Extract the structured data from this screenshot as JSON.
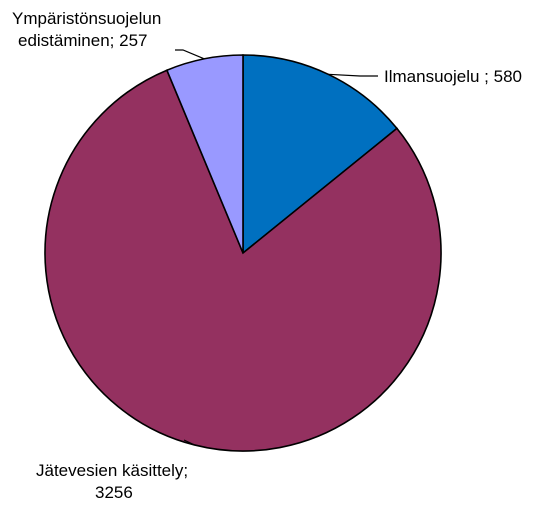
{
  "chart_data": {
    "type": "pie",
    "title": "",
    "slices": [
      {
        "label": "Ilmansuojelu",
        "value": 580,
        "text": "Ilmansuojelu  ; 580",
        "color": "#0070c0"
      },
      {
        "label": "Jätevesien käsittely",
        "value": 3256,
        "text_lines": [
          "Jätevesien käsittely;",
          "3256"
        ],
        "color": "#943160"
      },
      {
        "label": "Ympäristönsuojelun edistäminen",
        "value": 257,
        "text_lines": [
          "Ympäristönsuojelun",
          "edistäminen;  257"
        ],
        "color": "#9999ff"
      }
    ],
    "start_angle_deg": 0,
    "direction": "clockwise",
    "legend": "none"
  }
}
